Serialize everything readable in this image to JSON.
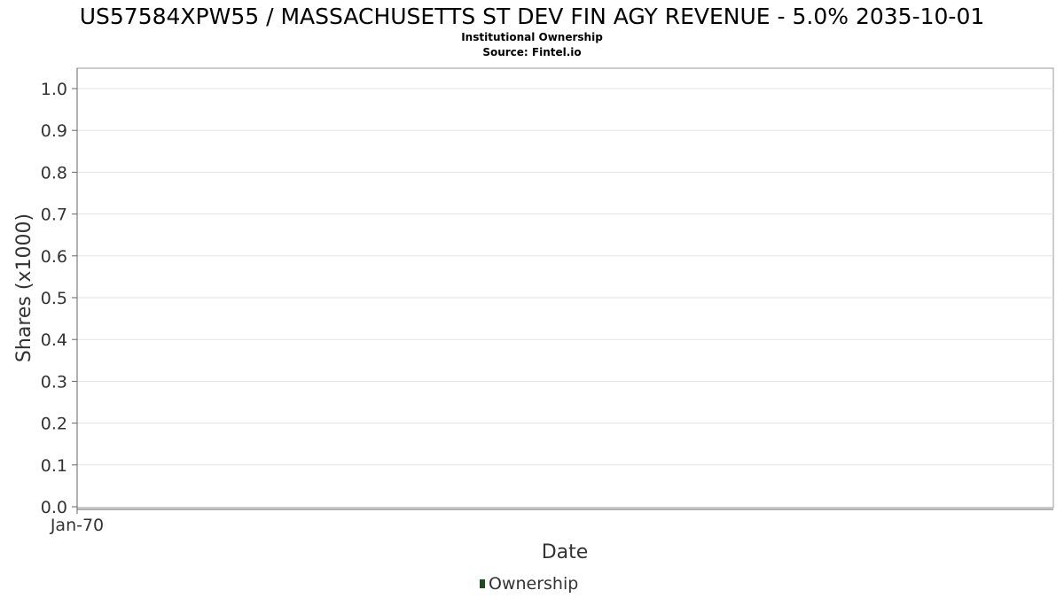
{
  "header": {
    "title": "US57584XPW55 / MASSACHUSETTS ST DEV FIN AGY REVENUE - 5.0% 2035-10-01",
    "subtitle": "Institutional Ownership",
    "source": "Source: Fintel.io"
  },
  "legend": {
    "label": "Ownership",
    "color": "#1e4d1e"
  },
  "chart_data": {
    "type": "bar",
    "title": "US57584XPW55 / MASSACHUSETTS ST DEV FIN AGY REVENUE - 5.0% 2035-10-01",
    "xlabel": "Date",
    "ylabel": "Shares (x1000)",
    "ylim": [
      0,
      1.0
    ],
    "yticks": [
      "0.0",
      "0.1",
      "0.2",
      "0.3",
      "0.4",
      "0.5",
      "0.6",
      "0.7",
      "0.8",
      "0.9",
      "1.0"
    ],
    "xticks": [
      "Jan-70"
    ],
    "grid": true,
    "legend_position": "bottom",
    "series": [
      {
        "name": "Ownership",
        "color": "#1e4d1e",
        "x": [],
        "values": []
      }
    ]
  }
}
